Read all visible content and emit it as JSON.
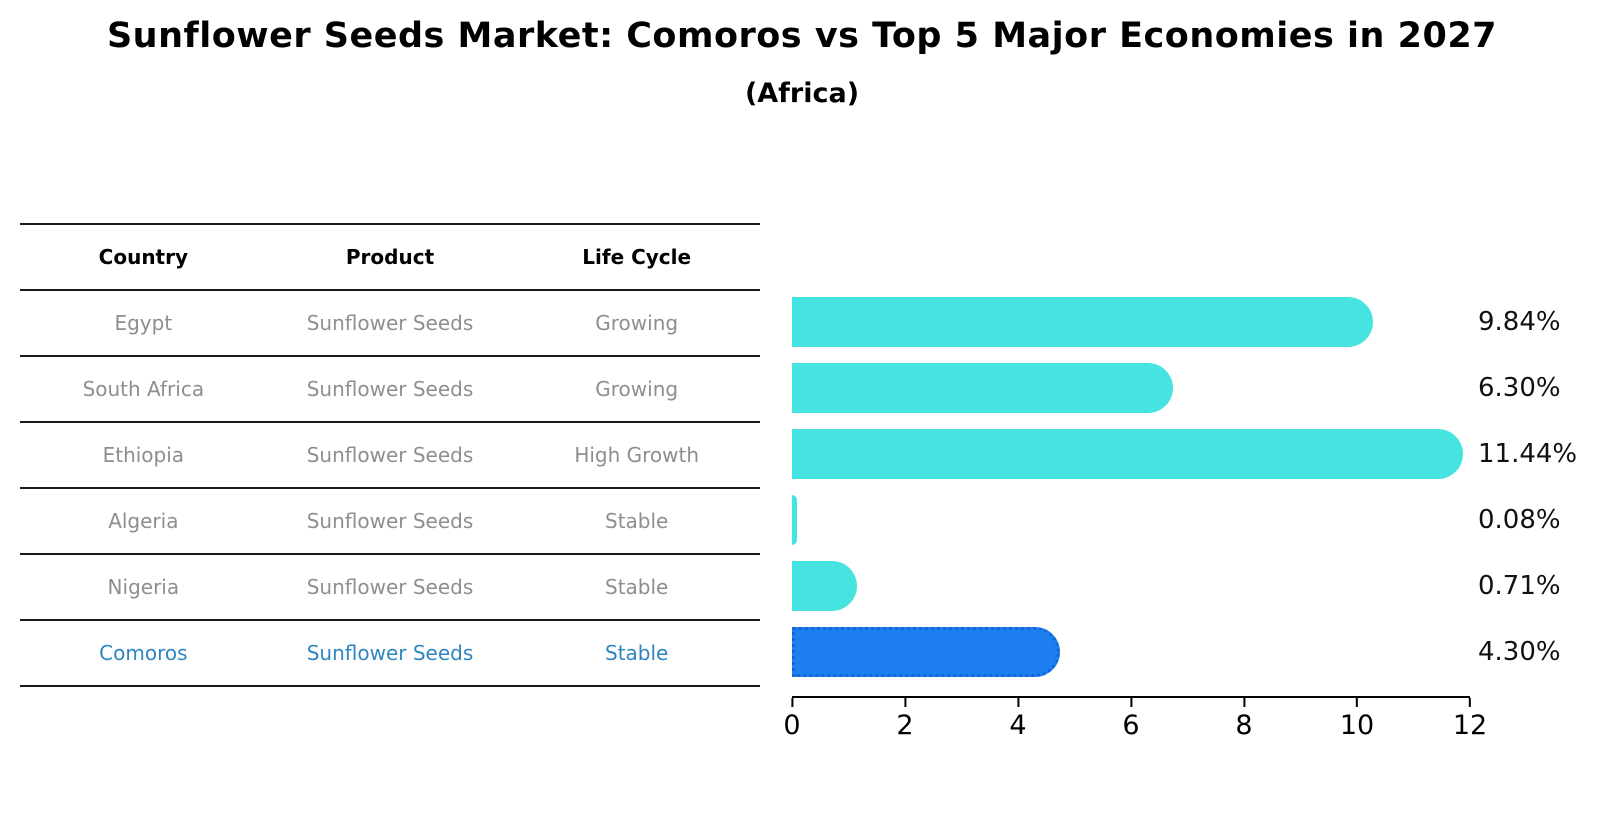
{
  "header": {
    "title": "Sunflower Seeds Market: Comoros vs Top 5 Major Economies in 2027",
    "subtitle": "(Africa)"
  },
  "table": {
    "columns": [
      "Country",
      "Product",
      "Life Cycle"
    ],
    "rows": [
      {
        "country": "Egypt",
        "product": "Sunflower Seeds",
        "life_cycle": "Growing"
      },
      {
        "country": "South Africa",
        "product": "Sunflower Seeds",
        "life_cycle": "Growing"
      },
      {
        "country": "Ethiopia",
        "product": "Sunflower Seeds",
        "life_cycle": "High Growth"
      },
      {
        "country": "Algeria",
        "product": "Sunflower Seeds",
        "life_cycle": "Stable"
      },
      {
        "country": "Nigeria",
        "product": "Sunflower Seeds",
        "life_cycle": "Stable"
      },
      {
        "country": "Comoros",
        "product": "Sunflower Seeds",
        "life_cycle": "Stable"
      }
    ]
  },
  "chart_data": {
    "type": "bar",
    "orientation": "horizontal",
    "title": "Sunflower Seeds Market: Comoros vs Top 5 Major Economies in 2027",
    "subtitle": "(Africa)",
    "categories": [
      "Egypt",
      "South Africa",
      "Ethiopia",
      "Algeria",
      "Nigeria",
      "Comoros"
    ],
    "values": [
      9.84,
      6.3,
      11.44,
      0.08,
      0.71,
      4.3
    ],
    "value_labels": [
      "9.84%",
      "6.30%",
      "11.44%",
      "0.08%",
      "0.71%",
      "4.30%"
    ],
    "xlabel": "",
    "ylabel": "",
    "xlim": [
      0,
      12
    ],
    "xticks": [
      0,
      2,
      4,
      6,
      8,
      10,
      12
    ],
    "grid": false,
    "legend": false,
    "highlight_category": "Comoros",
    "colors": {
      "default_bar": "#46E4E0",
      "highlight_bar": "#1E7FF0",
      "highlight_border": "#1565D8",
      "highlight_text": "#2E86C1",
      "row_text": "#8E8E8E",
      "table_line": "#1A1A1A"
    }
  }
}
